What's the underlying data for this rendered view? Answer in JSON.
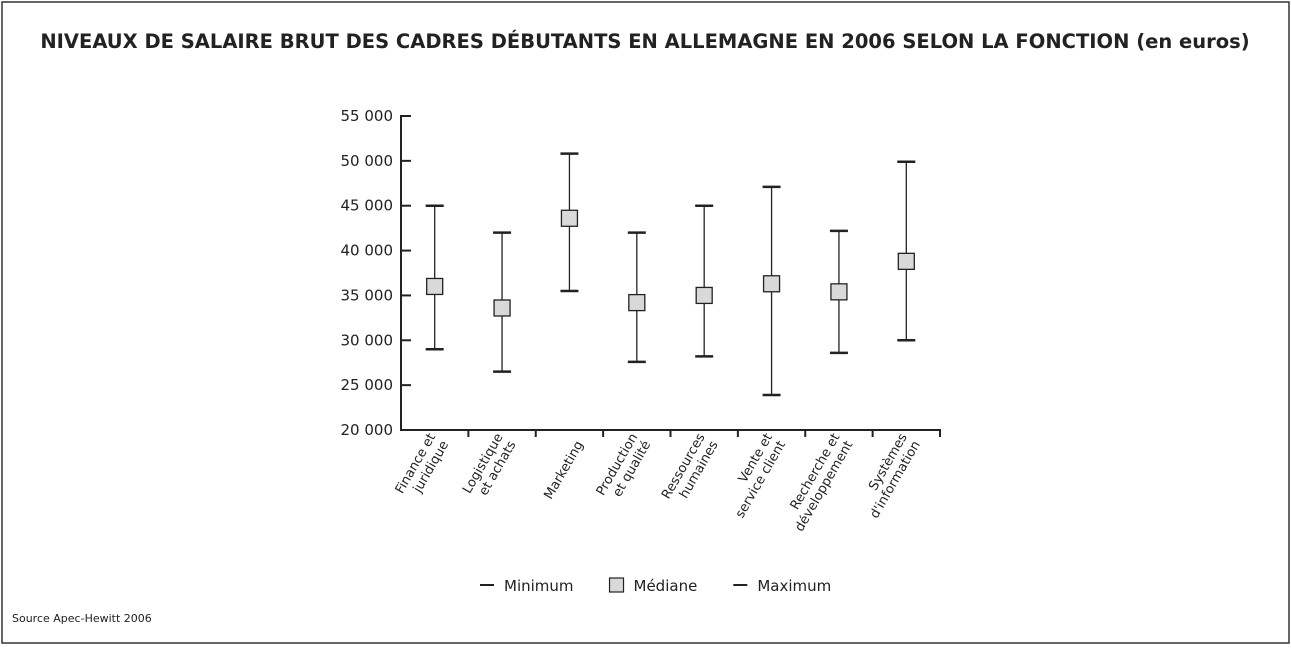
{
  "chart_data": {
    "type": "range",
    "title": "NIVEAUX DE SALAIRE BRUT DES CADRES DÉBUTANTS EN ALLEMAGNE EN 2006 SELON LA FONCTION (en euros)",
    "source": "Source Apec-Hewitt 2006",
    "categories": [
      [
        "Finance et",
        "juridique"
      ],
      [
        "Logistique",
        "et achats"
      ],
      [
        "Marketing"
      ],
      [
        "Production",
        "et qualité"
      ],
      [
        "Ressources",
        "humaines"
      ],
      [
        "Vente et",
        "service client"
      ],
      [
        "Recherche et",
        "développement"
      ],
      [
        "Systèmes",
        "d'information"
      ]
    ],
    "series": [
      {
        "name": "Minimum",
        "color": "#222222",
        "values": [
          29000,
          26500,
          35500,
          27600,
          28200,
          23900,
          28600,
          30000
        ]
      },
      {
        "name": "Médiane",
        "color": "#d9d9d9",
        "values": [
          36000,
          33600,
          43600,
          34200,
          35000,
          36300,
          35400,
          38800
        ]
      },
      {
        "name": "Maximum",
        "color": "#222222",
        "values": [
          45000,
          42000,
          50800,
          42000,
          45000,
          47100,
          42200,
          49900
        ]
      }
    ],
    "ylim": [
      20000,
      55000
    ],
    "yticks": [
      {
        "value": 20000,
        "label": "20 000"
      },
      {
        "value": 25000,
        "label": "25 000"
      },
      {
        "value": 30000,
        "label": "30 000"
      },
      {
        "value": 35000,
        "label": "35 000"
      },
      {
        "value": 40000,
        "label": "40 000"
      },
      {
        "value": 45000,
        "label": "45 000"
      },
      {
        "value": 50000,
        "label": "50 000"
      },
      {
        "value": 55000,
        "label": "55 000"
      }
    ],
    "legend": "bottom"
  }
}
